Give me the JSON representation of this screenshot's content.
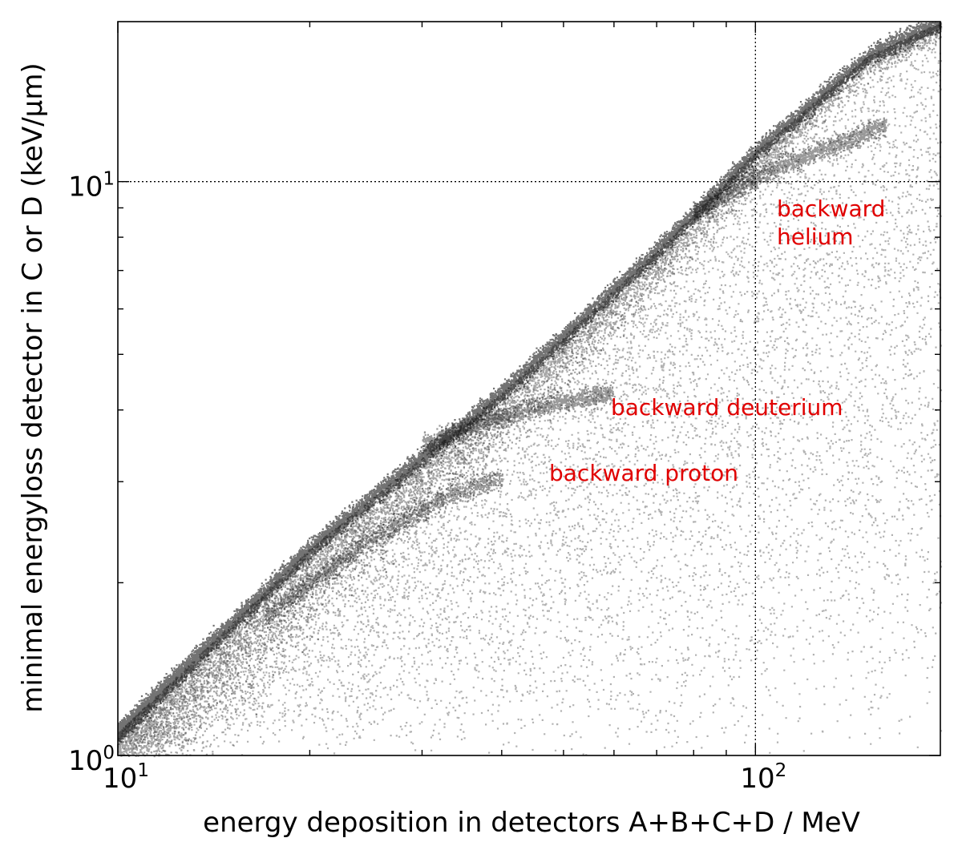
{
  "chart_data": {
    "type": "scatter",
    "title": "",
    "xlabel": "energy deposition in detectors A+B+C+D / MeV",
    "ylabel": "minimal energyloss detector in C or D (keV/μm)",
    "xscale": "log",
    "yscale": "log",
    "xlim": [
      10,
      195
    ],
    "ylim": [
      1,
      19
    ],
    "grid": "dotted lines at x=100 and y=10",
    "x_ticks": [
      {
        "value": 10,
        "base": "10",
        "exp": "1"
      },
      {
        "value": 100,
        "base": "10",
        "exp": "2"
      }
    ],
    "y_ticks": [
      {
        "value": 1,
        "base": "10",
        "exp": "0"
      },
      {
        "value": 10,
        "base": "10",
        "exp": "1"
      }
    ],
    "point_color": "#000000",
    "annotation_color": "#e00000",
    "bands": [
      {
        "description": "main ridge",
        "x": [
          10,
          20,
          40,
          70,
          100,
          150,
          195
        ],
        "y": [
          1.1,
          2.3,
          4.3,
          7.6,
          11.3,
          16.6,
          19
        ]
      },
      {
        "description": "backward proton",
        "x": [
          17,
          25,
          33,
          40
        ],
        "y": [
          1.75,
          2.4,
          2.85,
          3.05
        ]
      },
      {
        "description": "backward deuterium",
        "x": [
          30,
          40,
          50,
          60
        ],
        "y": [
          3.5,
          3.9,
          4.15,
          4.3
        ]
      },
      {
        "description": "backward helium",
        "x": [
          80,
          100,
          130,
          160
        ],
        "y": [
          8.8,
          10.2,
          11.5,
          12.6
        ]
      }
    ],
    "annotations": [
      {
        "text": "backward helium",
        "line1": "backward",
        "line2": "helium",
        "x": 110,
        "y": 9.5
      },
      {
        "text": "backward deuterium",
        "x": 60,
        "y": 4.3
      },
      {
        "text": "backward proton",
        "x": 49,
        "y": 3.15
      }
    ]
  }
}
